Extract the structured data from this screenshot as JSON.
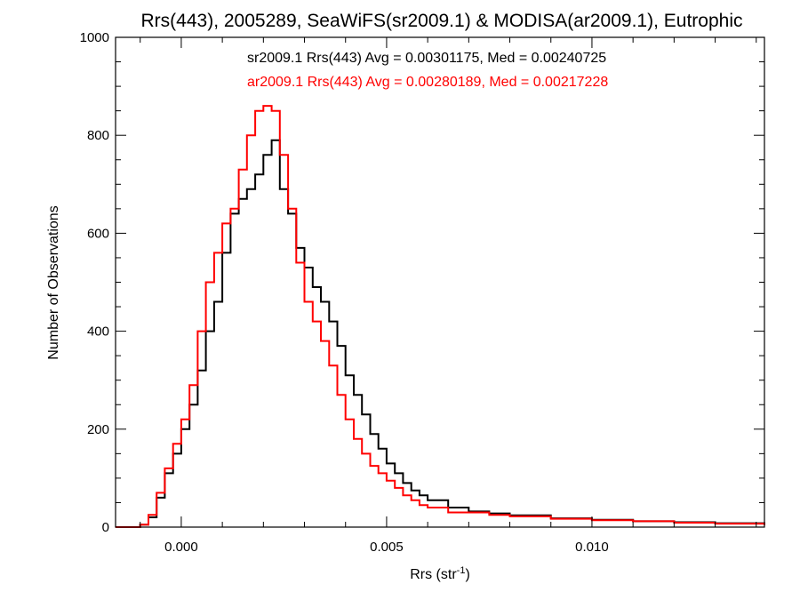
{
  "chart_data": {
    "type": "line",
    "title": "Rrs(443), 2005289, SeaWiFS(sr2009.1) & MODISA(ar2009.1), Eutrophic",
    "xlabel": "Rrs (str",
    "xlabel_superscript": "-1",
    "xlabel_suffix": ")",
    "ylabel": "Number of Observations",
    "xlim": [
      -0.0016,
      0.0142
    ],
    "ylim": [
      0,
      1000
    ],
    "x_ticks": [
      0.0,
      0.005,
      0.01
    ],
    "x_tick_labels": [
      "0.000",
      "0.005",
      "0.010"
    ],
    "y_ticks": [
      0,
      200,
      400,
      600,
      800,
      1000
    ],
    "y_tick_labels": [
      "0",
      "200",
      "400",
      "600",
      "800",
      "1000"
    ],
    "grid": false,
    "annotations": [
      {
        "text": "sr2009.1 Rrs(443) Avg = 0.00301175, Med = 0.00240725",
        "color": "#000000"
      },
      {
        "text": "ar2009.1 Rrs(443) Avg = 0.00280189, Med = 0.00217228",
        "color": "#ff0000"
      }
    ],
    "series": [
      {
        "color": "#000000",
        "x": [
          -0.0016,
          -0.001,
          -0.0008,
          -0.0006,
          -0.0004,
          -0.0002,
          0.0,
          0.0002,
          0.0004,
          0.0006,
          0.0008,
          0.001,
          0.0012,
          0.0014,
          0.0016,
          0.0018,
          0.002,
          0.0022,
          0.0024,
          0.0026,
          0.0028,
          0.003,
          0.0032,
          0.0034,
          0.0036,
          0.0038,
          0.004,
          0.0042,
          0.0044,
          0.0046,
          0.0048,
          0.005,
          0.0052,
          0.0054,
          0.0056,
          0.0058,
          0.006,
          0.0065,
          0.007,
          0.0075,
          0.008,
          0.009,
          0.01,
          0.011,
          0.012,
          0.013,
          0.0142
        ],
        "y": [
          0,
          5,
          20,
          60,
          110,
          150,
          200,
          250,
          320,
          400,
          460,
          560,
          640,
          670,
          690,
          720,
          760,
          790,
          690,
          640,
          570,
          530,
          490,
          460,
          420,
          370,
          310,
          270,
          230,
          190,
          160,
          130,
          110,
          90,
          75,
          65,
          55,
          40,
          32,
          28,
          24,
          18,
          15,
          12,
          10,
          8,
          5
        ]
      },
      {
        "color": "#ff0000",
        "x": [
          -0.0016,
          -0.001,
          -0.0008,
          -0.0006,
          -0.0004,
          -0.0002,
          0.0,
          0.0002,
          0.0004,
          0.0006,
          0.0008,
          0.001,
          0.0012,
          0.0014,
          0.0016,
          0.0018,
          0.002,
          0.0022,
          0.0024,
          0.0026,
          0.0028,
          0.003,
          0.0032,
          0.0034,
          0.0036,
          0.0038,
          0.004,
          0.0042,
          0.0044,
          0.0046,
          0.0048,
          0.005,
          0.0052,
          0.0054,
          0.0056,
          0.0058,
          0.006,
          0.0065,
          0.007,
          0.0075,
          0.008,
          0.009,
          0.01,
          0.011,
          0.012,
          0.013,
          0.0142
        ],
        "y": [
          0,
          5,
          25,
          70,
          120,
          170,
          220,
          290,
          400,
          500,
          560,
          620,
          650,
          730,
          800,
          850,
          860,
          850,
          760,
          650,
          540,
          460,
          420,
          380,
          330,
          270,
          220,
          180,
          150,
          125,
          110,
          95,
          80,
          65,
          55,
          45,
          40,
          30,
          30,
          25,
          22,
          17,
          14,
          12,
          9,
          7,
          4
        ]
      }
    ]
  }
}
